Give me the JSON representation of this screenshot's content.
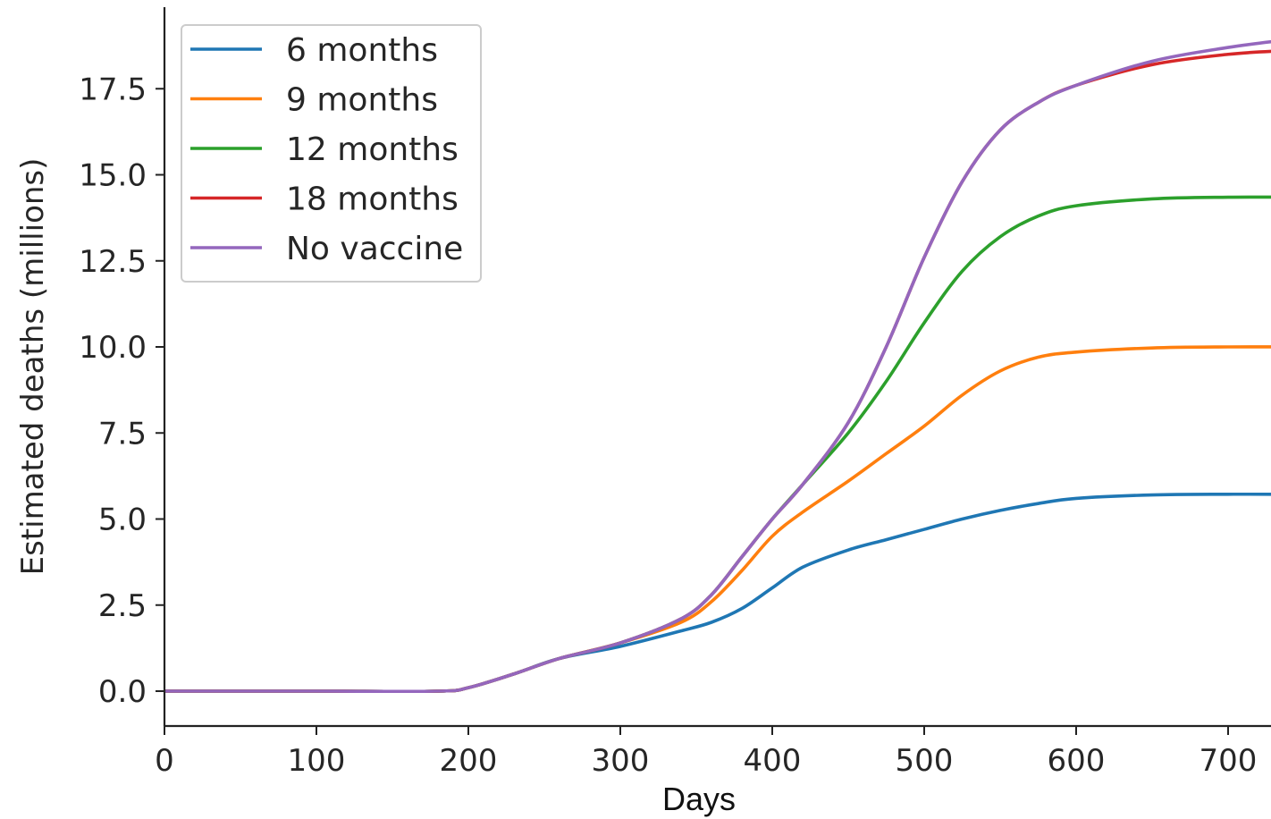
{
  "chart_data": {
    "type": "line",
    "xlabel": "Days",
    "ylabel": "Estimated deaths (millions)",
    "xlim": [
      0,
      735
    ],
    "ylim": [
      -0.95,
      19.6
    ],
    "xticks": [
      0,
      100,
      200,
      300,
      400,
      500,
      600,
      700
    ],
    "yticks": [
      0.0,
      2.5,
      5.0,
      7.5,
      10.0,
      12.5,
      15.0,
      17.5
    ],
    "ytick_labels": [
      "0.0",
      "2.5",
      "5.0",
      "7.5",
      "10.0",
      "12.5",
      "15.0",
      "17.5"
    ],
    "grid": false,
    "legend_position": "top-left",
    "x": [
      0,
      100,
      180,
      200,
      230,
      260,
      300,
      340,
      360,
      380,
      400,
      420,
      450,
      475,
      500,
      525,
      550,
      575,
      600,
      650,
      700,
      735
    ],
    "series": [
      {
        "name": "6 months",
        "color": "#1f77b4",
        "values": [
          0,
          0,
          0,
          0.1,
          0.5,
          0.95,
          1.3,
          1.75,
          2.0,
          2.4,
          3.0,
          3.6,
          4.1,
          4.4,
          4.7,
          5.0,
          5.25,
          5.45,
          5.6,
          5.7,
          5.72,
          5.72
        ]
      },
      {
        "name": "9 months",
        "color": "#ff7f0e",
        "values": [
          0,
          0,
          0,
          0.1,
          0.5,
          0.95,
          1.4,
          2.0,
          2.6,
          3.5,
          4.5,
          5.2,
          6.1,
          6.9,
          7.7,
          8.6,
          9.3,
          9.7,
          9.85,
          9.97,
          10.0,
          10.0
        ]
      },
      {
        "name": "12 months",
        "color": "#2ca02c",
        "values": [
          0,
          0,
          0,
          0.1,
          0.5,
          0.95,
          1.4,
          2.1,
          2.8,
          3.9,
          5.0,
          6.0,
          7.5,
          9.0,
          10.7,
          12.2,
          13.2,
          13.8,
          14.1,
          14.3,
          14.35,
          14.35
        ]
      },
      {
        "name": "18 months",
        "color": "#d62728",
        "values": [
          0,
          0,
          0,
          0.1,
          0.5,
          0.95,
          1.4,
          2.1,
          2.8,
          3.9,
          5.0,
          6.0,
          7.8,
          10.0,
          12.6,
          14.8,
          16.3,
          17.1,
          17.6,
          18.2,
          18.5,
          18.6
        ]
      },
      {
        "name": "No vaccine",
        "color": "#9467bd",
        "values": [
          0,
          0,
          0,
          0.1,
          0.5,
          0.95,
          1.4,
          2.1,
          2.8,
          3.9,
          5.0,
          6.0,
          7.8,
          10.0,
          12.6,
          14.8,
          16.3,
          17.1,
          17.6,
          18.3,
          18.7,
          18.9
        ]
      }
    ]
  }
}
